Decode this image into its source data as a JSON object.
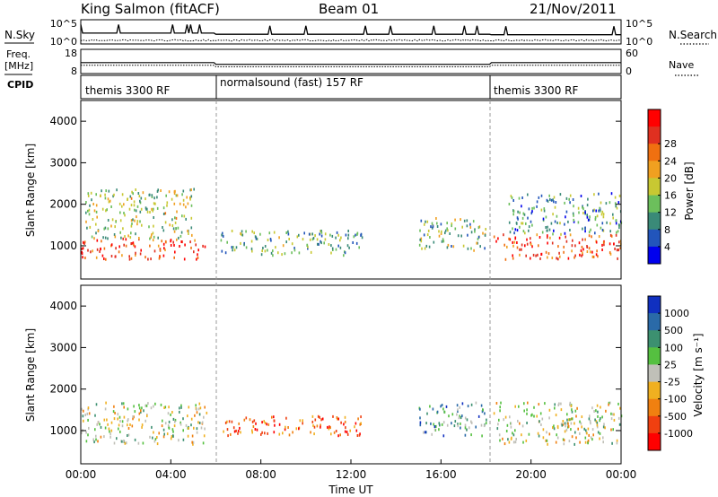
{
  "header": {
    "station": "King Salmon (fitACF)",
    "beam": "Beam 01",
    "date": "21/Nov/2011"
  },
  "left_labels": {
    "nsky": "N.Sky",
    "freq_line1": "Freq.",
    "freq_line2": "[MHz]",
    "cpid": "CPID"
  },
  "right_labels": {
    "nsearch": "N.Search",
    "nave": "Nave"
  },
  "noise_panel": {
    "left_ticks": [
      "10^5",
      "10^0"
    ],
    "right_ticks": [
      "10^5",
      "10^0"
    ]
  },
  "freq_panel": {
    "left_ticks": [
      "18",
      "8"
    ],
    "right_ticks": [
      "60",
      "0"
    ]
  },
  "cpid_segments": [
    {
      "label": "themis 3300 RF",
      "start_hour": 0,
      "end_hour": 6
    },
    {
      "label": "normalsound (fast) 157 RF",
      "start_hour": 6,
      "end_hour": 18.2
    },
    {
      "label": "themis 3300 RF",
      "start_hour": 18.2,
      "end_hour": 24
    }
  ],
  "chart_data": [
    {
      "type": "heatmap",
      "quantity": "Power",
      "ylabel": "Slant Range [km]",
      "ylim": [
        200,
        4500
      ],
      "y_ticks": [
        "1000",
        "2000",
        "3000",
        "4000"
      ],
      "colorbar_label": "Power [dB]",
      "colorbar_ticks": [
        "4",
        "8",
        "12",
        "16",
        "20",
        "24",
        "28"
      ],
      "colorbar_colors": [
        "#0000ee",
        "#2255bb",
        "#3a8a78",
        "#6cbf5c",
        "#c8c832",
        "#f0a020",
        "#f07010",
        "#e03020",
        "#ff0000"
      ],
      "xlim_hours": [
        0,
        24
      ],
      "regions": [
        {
          "t0": 0,
          "t1": 5.5,
          "r0": 700,
          "r1": 1200,
          "level": 0.85
        },
        {
          "t0": 0.2,
          "t1": 5.0,
          "r0": 1200,
          "r1": 2400,
          "level": 0.45
        },
        {
          "t0": 6.2,
          "t1": 12.5,
          "r0": 800,
          "r1": 1400,
          "level": 0.35
        },
        {
          "t0": 15.0,
          "t1": 18.0,
          "r0": 900,
          "r1": 1700,
          "level": 0.4
        },
        {
          "t0": 18.3,
          "t1": 24,
          "r0": 700,
          "r1": 1300,
          "level": 0.8
        },
        {
          "t0": 19.0,
          "t1": 24,
          "r0": 1300,
          "r1": 2300,
          "level": 0.3
        }
      ]
    },
    {
      "type": "heatmap",
      "quantity": "Velocity",
      "ylabel": "Slant Range [km]",
      "xlabel": "Time UT",
      "ylim": [
        200,
        4500
      ],
      "y_ticks": [
        "1000",
        "2000",
        "3000",
        "4000"
      ],
      "x_ticks": [
        "00:00",
        "04:00",
        "08:00",
        "12:00",
        "16:00",
        "20:00",
        "00:00"
      ],
      "x_tick_hours": [
        0,
        4,
        8,
        12,
        16,
        20,
        24
      ],
      "colorbar_label": "Velocity [m s⁻¹]",
      "colorbar_ticks": [
        "1000",
        "500",
        "100",
        "25",
        "-25",
        "-100",
        "-500",
        "-1000"
      ],
      "colorbar_colors": [
        "#1030c0",
        "#2a6aa8",
        "#3c9070",
        "#55c040",
        "#c0c0b8",
        "#f0b020",
        "#f08010",
        "#f04010",
        "#ff0000"
      ],
      "xlim_hours": [
        0,
        24
      ],
      "regions": [
        {
          "t0": 0,
          "t1": 5.6,
          "r0": 700,
          "r1": 1700,
          "level": 0.5
        },
        {
          "t0": 6.2,
          "t1": 12.5,
          "r0": 900,
          "r1": 1400,
          "level": 0.8
        },
        {
          "t0": 15.0,
          "t1": 18.0,
          "r0": 900,
          "r1": 1700,
          "level": 0.3
        },
        {
          "t0": 18.3,
          "t1": 24,
          "r0": 700,
          "r1": 1700,
          "level": 0.5
        }
      ]
    }
  ]
}
